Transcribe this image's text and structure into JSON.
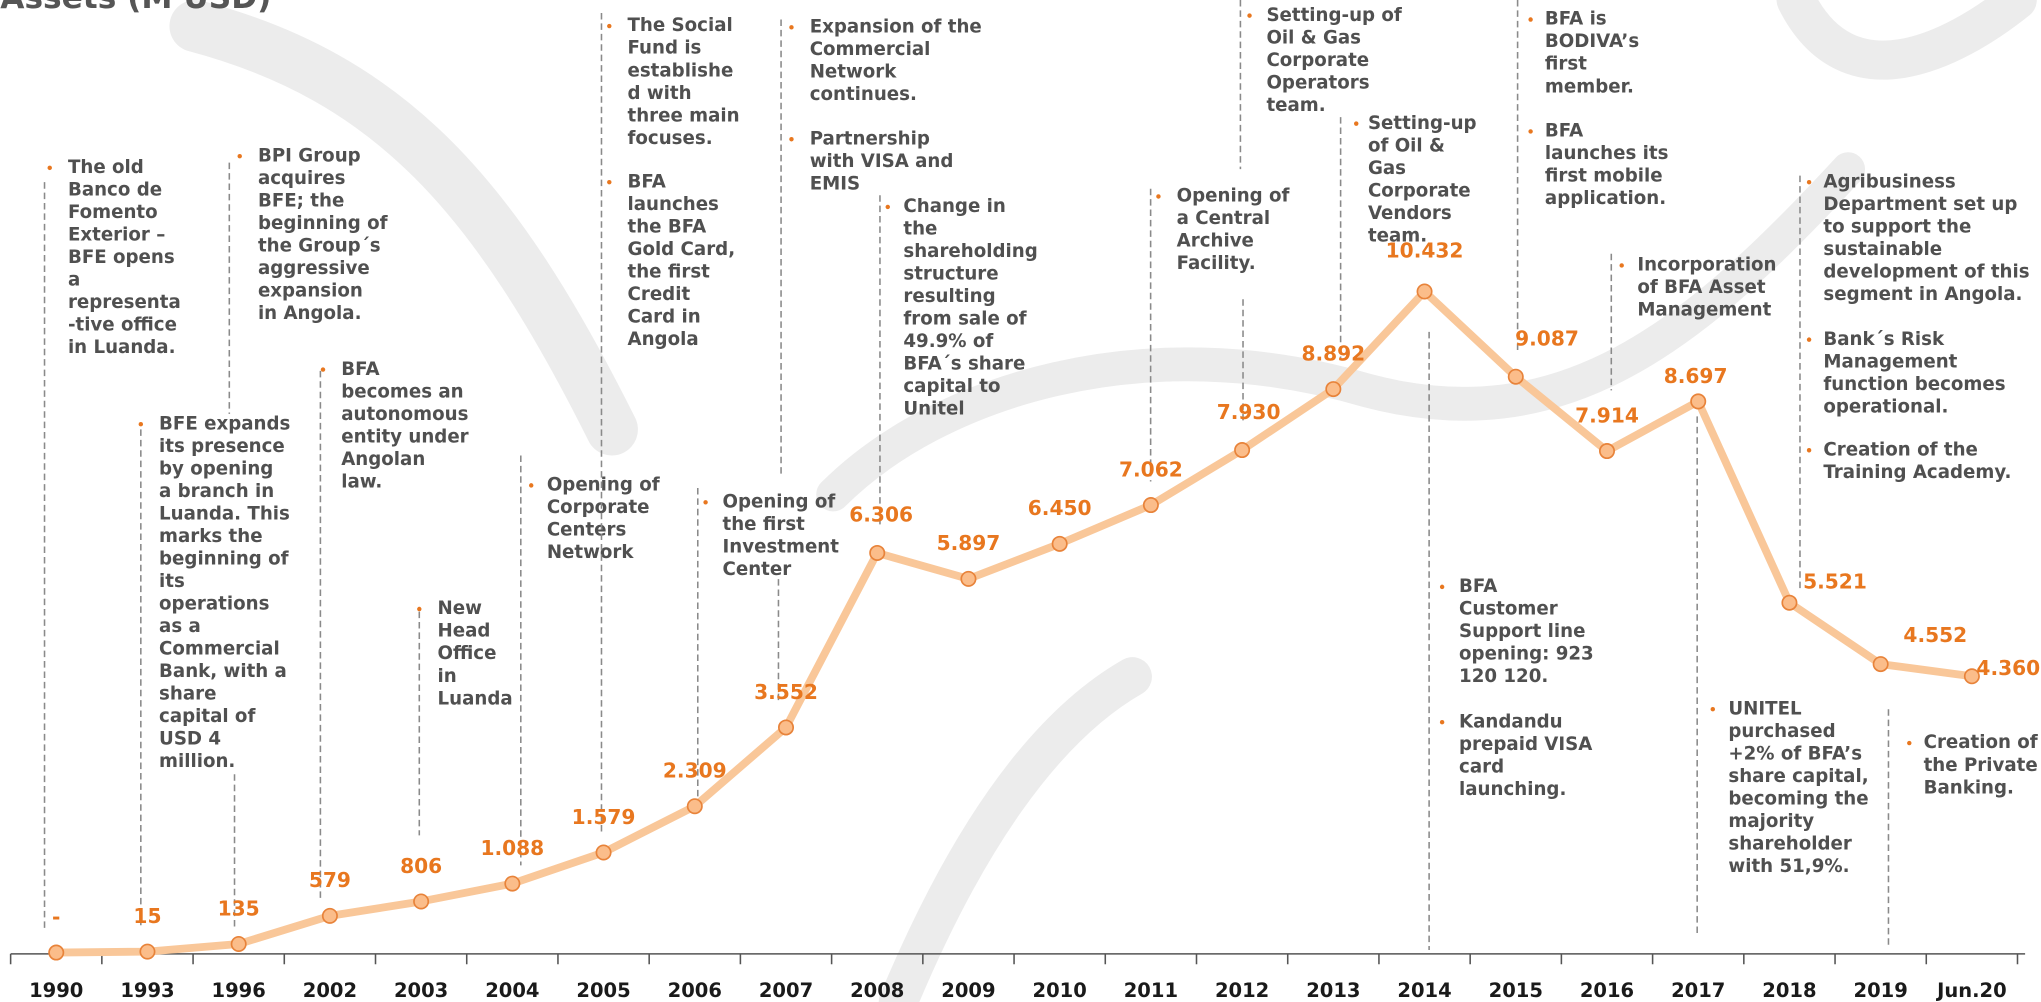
{
  "chart_data": {
    "type": "line",
    "title": "Assets (M USD)",
    "categories": [
      "1990",
      "1993",
      "1996",
      "2002",
      "2003",
      "2004",
      "2005",
      "2006",
      "2007",
      "2008",
      "2009",
      "2010",
      "2011",
      "2012",
      "2013",
      "2014",
      "2015",
      "2016",
      "2017",
      "2018",
      "2019",
      "Jun.20"
    ],
    "values": [
      0,
      15,
      135,
      579,
      806,
      1088,
      1579,
      2309,
      3552,
      6306,
      5897,
      6450,
      7062,
      7930,
      8892,
      10432,
      9087,
      7914,
      8697,
      5521,
      4552,
      4360
    ],
    "value_labels": [
      "-",
      "15",
      "135",
      "579",
      "806",
      "1.088",
      "1.579",
      "2.309",
      "3.552",
      "6.306",
      "5.897",
      "6.450",
      "7.062",
      "7.930",
      "8.892",
      "10.432",
      "9.087",
      "7.914",
      "8.697",
      "5.521",
      "4.552",
      "4.360"
    ],
    "color": "#f9c799",
    "marker_color": "#e8833a",
    "annotations": [
      {
        "items": [
          [
            "The old",
            "Banco de",
            "Fomento",
            "Exterior –",
            "BFE opens",
            "a",
            "representa",
            "-tive office",
            "in Luanda."
          ]
        ]
      },
      {
        "items": [
          [
            "BFE expands",
            "its presence",
            "by opening",
            "a branch in",
            "Luanda. This",
            "marks the",
            "beginning of",
            "its",
            "operations",
            "as a",
            "Commercial",
            "Bank, with a",
            "share",
            "capital of",
            "USD 4",
            "million."
          ]
        ]
      },
      {
        "items": [
          [
            "BPI Group",
            "acquires",
            "BFE; the",
            "beginning of",
            "the Group´s",
            "aggressive",
            "expansion",
            "in Angola."
          ]
        ]
      },
      {
        "items": [
          [
            "BFA",
            "becomes an",
            "autonomous",
            "entity under",
            "Angolan",
            "law."
          ]
        ]
      },
      {
        "items": [
          [
            "New",
            "Head",
            "Office",
            "in",
            "Luanda"
          ]
        ]
      },
      {
        "items": [
          [
            "Opening of",
            "Corporate",
            "Centers",
            "Network"
          ]
        ]
      },
      {
        "items": [
          [
            "The Social",
            "Fund is",
            "establishe",
            "d with",
            "three main",
            "focuses."
          ],
          [
            "BFA",
            "launches",
            "the BFA",
            "Gold Card,",
            "the first",
            "Credit",
            "Card in",
            "Angola"
          ]
        ]
      },
      {
        "items": [
          [
            "Opening of",
            "the first",
            "Investment",
            "Center"
          ]
        ]
      },
      {
        "items": [
          [
            "Expansion of the",
            "Commercial",
            "Network",
            "continues."
          ],
          [
            "Partnership",
            "with VISA and",
            "EMIS"
          ]
        ]
      },
      {
        "items": [
          [
            "Change in",
            "the",
            "shareholding",
            "structure",
            "resulting",
            "from sale of",
            "49.9% of",
            "BFA´s share",
            "capital to",
            "Unitel"
          ]
        ]
      },
      {
        "items": [
          [
            "Opening of",
            "a Central",
            "Archive",
            "Facility."
          ]
        ]
      },
      {
        "items": [
          [
            "Setting-up of",
            "Oil & Gas",
            "Corporate",
            "Operators",
            "team."
          ]
        ]
      },
      {
        "items": [
          [
            "Setting-up",
            "of Oil &",
            "Gas",
            "Corporate",
            "Vendors",
            "team."
          ]
        ]
      },
      {
        "items": [
          [
            "BFA is",
            "BODIVA’s",
            "first",
            "member."
          ],
          [
            "BFA",
            "launches its",
            "first mobile",
            "application."
          ]
        ]
      },
      {
        "items": [
          [
            "BFA",
            "Customer",
            "Support line",
            "opening: 923",
            "120 120."
          ],
          [
            "Kandandu",
            "prepaid VISA",
            "card",
            "launching."
          ]
        ]
      },
      {
        "items": [
          [
            "Incorporation",
            "of BFA Asset",
            "Management"
          ]
        ]
      },
      {
        "items": [
          [
            "Agribusiness",
            "Department set up",
            "to support the",
            "sustainable",
            "development of this",
            "segment in Angola."
          ],
          [
            "Bank´s Risk",
            "Management",
            "function becomes",
            "operational."
          ],
          [
            "Creation of the",
            "Training Academy."
          ]
        ]
      },
      {
        "items": [
          [
            "UNITEL",
            "purchased",
            "+2% of BFA’s",
            "share capital,",
            "becoming the",
            "majority",
            "shareholder",
            "with 51,9%."
          ]
        ]
      },
      {
        "items": [
          [
            "Creation of",
            "the Private",
            "Banking."
          ]
        ]
      }
    ]
  }
}
